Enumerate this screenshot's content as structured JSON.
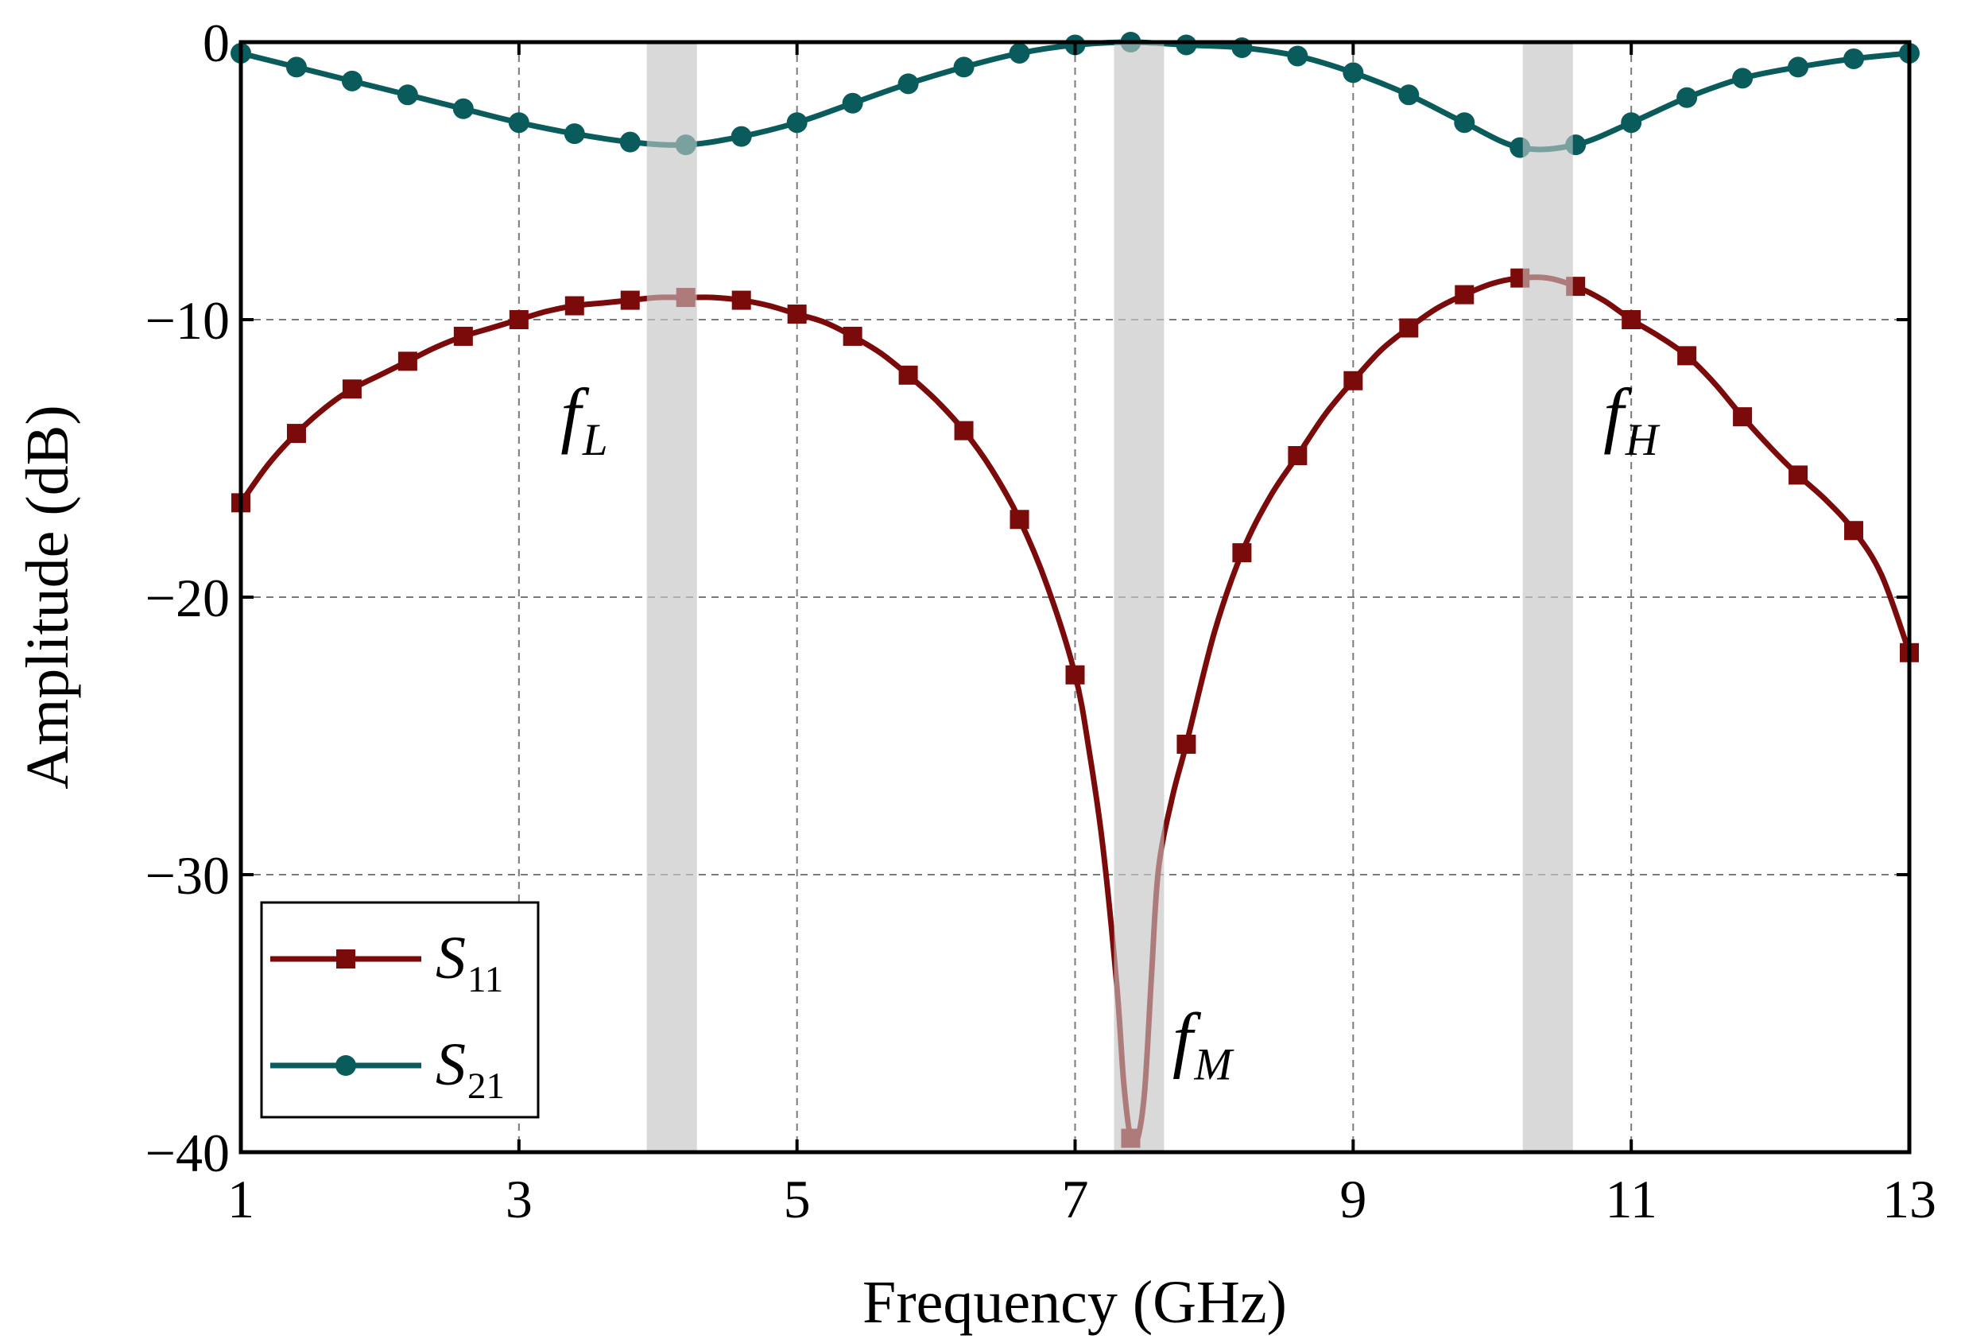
{
  "chart_data": {
    "type": "line",
    "title": "",
    "xlabel": "Frequency (GHz)",
    "ylabel": "Amplitude (dB)",
    "xlim": [
      1,
      13
    ],
    "ylim": [
      -40,
      0
    ],
    "xticks": [
      1,
      3,
      5,
      7,
      9,
      11,
      13
    ],
    "yticks": [
      0,
      -10,
      -20,
      -30,
      -40
    ],
    "ytick_labels": [
      "0",
      "−10",
      "−20",
      "−30",
      "−40"
    ],
    "grid": true,
    "legend_position": "bottom-left",
    "shaded_bands": [
      {
        "from": 3.92,
        "to": 4.28
      },
      {
        "from": 7.28,
        "to": 7.64
      },
      {
        "from": 10.22,
        "to": 10.58
      }
    ],
    "annotations": [
      {
        "base": "f",
        "sub": "L",
        "x": 3.3,
        "y": -14.3
      },
      {
        "base": "f",
        "sub": "M",
        "x": 7.7,
        "y": -36.8
      },
      {
        "base": "f",
        "sub": "H",
        "x": 10.8,
        "y": -14.3
      }
    ],
    "series": [
      {
        "name": "S11",
        "label_base": "S",
        "label_sub": "11",
        "color": "#7b0a0a",
        "marker": "square",
        "x": [
          1.0,
          1.4,
          1.8,
          2.2,
          2.6,
          3.0,
          3.4,
          3.8,
          4.2,
          4.6,
          5.0,
          5.4,
          5.8,
          6.2,
          6.6,
          7.0,
          7.4,
          7.8,
          8.2,
          8.6,
          9.0,
          9.4,
          9.8,
          10.2,
          10.6,
          11.0,
          11.4,
          11.8,
          12.2,
          12.6,
          13.0
        ],
        "y": [
          -16.6,
          -14.1,
          -12.5,
          -11.5,
          -10.6,
          -10.0,
          -9.5,
          -9.3,
          -9.2,
          -9.3,
          -9.8,
          -10.6,
          -12.0,
          -14.0,
          -17.2,
          -22.8,
          -39.5,
          -25.3,
          -18.4,
          -14.9,
          -12.2,
          -10.3,
          -9.1,
          -8.5,
          -8.8,
          -10.0,
          -11.3,
          -13.5,
          -15.6,
          -17.6,
          -22.0
        ],
        "curve": {
          "x": [
            1.0,
            1.2,
            1.4,
            1.6,
            1.8,
            2.0,
            2.2,
            2.4,
            2.6,
            2.8,
            3.0,
            3.2,
            3.4,
            3.6,
            3.8,
            4.0,
            4.2,
            4.4,
            4.6,
            4.8,
            5.0,
            5.2,
            5.4,
            5.6,
            5.8,
            6.0,
            6.2,
            6.4,
            6.6,
            6.8,
            7.0,
            7.1,
            7.2,
            7.3,
            7.35,
            7.4,
            7.45,
            7.5,
            7.55,
            7.6,
            7.7,
            7.8,
            8.0,
            8.2,
            8.4,
            8.6,
            8.8,
            9.0,
            9.2,
            9.4,
            9.6,
            9.8,
            10.0,
            10.2,
            10.4,
            10.6,
            10.8,
            11.0,
            11.2,
            11.4,
            11.6,
            11.8,
            12.0,
            12.2,
            12.4,
            12.6,
            12.8,
            13.0
          ],
          "y": [
            -16.6,
            -15.2,
            -14.1,
            -13.2,
            -12.5,
            -12.0,
            -11.5,
            -11.0,
            -10.6,
            -10.3,
            -10.0,
            -9.7,
            -9.5,
            -9.4,
            -9.3,
            -9.2,
            -9.2,
            -9.2,
            -9.3,
            -9.5,
            -9.8,
            -10.1,
            -10.6,
            -11.2,
            -12.0,
            -12.9,
            -14.0,
            -15.4,
            -17.2,
            -19.6,
            -22.8,
            -25.5,
            -29.0,
            -34.0,
            -37.5,
            -39.5,
            -39.5,
            -37.8,
            -33.6,
            -29.8,
            -27.2,
            -25.3,
            -21.3,
            -18.4,
            -16.4,
            -14.9,
            -13.4,
            -12.2,
            -11.1,
            -10.3,
            -9.6,
            -9.1,
            -8.7,
            -8.5,
            -8.5,
            -8.8,
            -9.3,
            -10.0,
            -10.6,
            -11.3,
            -12.3,
            -13.5,
            -14.6,
            -15.6,
            -16.5,
            -17.6,
            -19.2,
            -22.0
          ]
        }
      },
      {
        "name": "S21",
        "label_base": "S",
        "label_sub": "21",
        "color": "#0a5c5c",
        "marker": "circle",
        "x": [
          1.0,
          1.4,
          1.8,
          2.2,
          2.6,
          3.0,
          3.4,
          3.8,
          4.2,
          4.6,
          5.0,
          5.4,
          5.8,
          6.2,
          6.6,
          7.0,
          7.4,
          7.8,
          8.2,
          8.6,
          9.0,
          9.4,
          9.8,
          10.2,
          10.6,
          11.0,
          11.4,
          11.8,
          12.2,
          12.6,
          13.0
        ],
        "y": [
          -0.4,
          -0.9,
          -1.4,
          -1.9,
          -2.4,
          -2.9,
          -3.3,
          -3.6,
          -3.7,
          -3.4,
          -2.9,
          -2.2,
          -1.5,
          -0.9,
          -0.4,
          -0.1,
          0.0,
          -0.1,
          -0.2,
          -0.5,
          -1.1,
          -1.9,
          -2.9,
          -3.8,
          -3.7,
          -2.9,
          -2.0,
          -1.3,
          -0.9,
          -0.6,
          -0.4
        ]
      }
    ]
  }
}
